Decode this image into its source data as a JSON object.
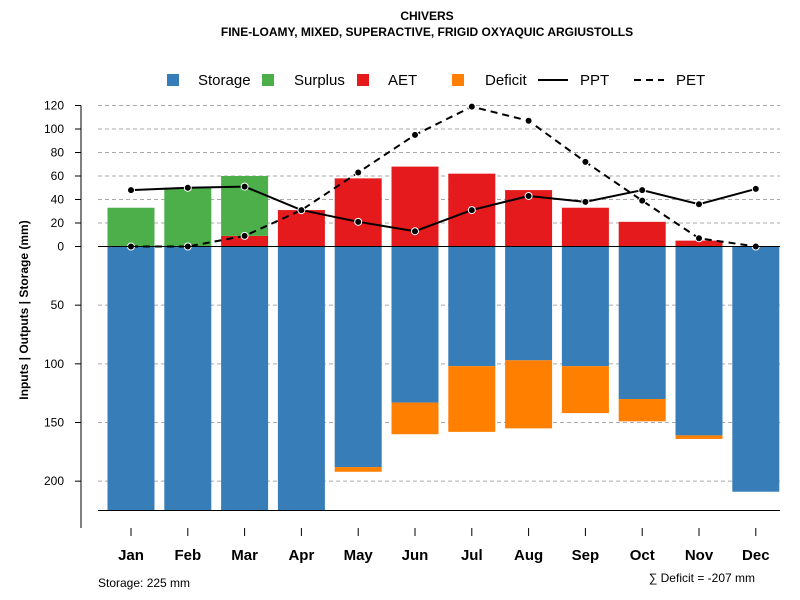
{
  "chart_data": {
    "type": "bar",
    "title": "CHIVERS",
    "subtitle": "FINE-LOAMY, MIXED, SUPERACTIVE, FRIGID OXYAQUIC ARGIUSTOLLS",
    "ylabel": "Inputs | Outputs | Storage     (mm)",
    "categories": [
      "Jan",
      "Feb",
      "Mar",
      "Apr",
      "May",
      "Jun",
      "Jul",
      "Aug",
      "Sep",
      "Oct",
      "Nov",
      "Dec"
    ],
    "legend": [
      {
        "label": "Storage",
        "kind": "box",
        "color": "#377EB8"
      },
      {
        "label": "Surplus",
        "kind": "box",
        "color": "#4DAF4A"
      },
      {
        "label": "AET",
        "kind": "box",
        "color": "#E41A1C"
      },
      {
        "label": "Deficit",
        "kind": "box",
        "color": "#FF7F00"
      },
      {
        "label": "PPT",
        "kind": "solid"
      },
      {
        "label": "PET",
        "kind": "dashed"
      }
    ],
    "y_upper_ticks": [
      0,
      20,
      40,
      60,
      80,
      100,
      120
    ],
    "y_lower_ticks": [
      50,
      100,
      150,
      200
    ],
    "y_upper_range": [
      0,
      120
    ],
    "y_lower_range": [
      0,
      225
    ],
    "series": {
      "storage": [
        225,
        225,
        225,
        225,
        188,
        133,
        102,
        97,
        102,
        130,
        161,
        209
      ],
      "deficit": [
        0,
        0,
        0,
        0,
        4,
        27,
        56,
        58,
        40,
        19,
        3,
        0
      ],
      "surplus": [
        33,
        50,
        51,
        0,
        0,
        0,
        0,
        0,
        0,
        0,
        0,
        0
      ],
      "aet": [
        0,
        0,
        9,
        31,
        58,
        68,
        62,
        48,
        33,
        21,
        5,
        0
      ],
      "ppt": [
        48,
        50,
        51,
        31,
        21,
        13,
        31,
        43,
        38,
        48,
        36,
        49
      ],
      "pet": [
        0,
        0,
        9,
        31,
        63,
        95,
        119,
        107,
        72,
        39,
        7,
        0
      ]
    },
    "colors": {
      "storage": "#377EB8",
      "surplus": "#4DAF4A",
      "aet": "#E41A1C",
      "deficit": "#FF7F00"
    },
    "storage_note": "Storage: 225 mm",
    "deficit_note": "∑ Deficit = -207 mm"
  }
}
